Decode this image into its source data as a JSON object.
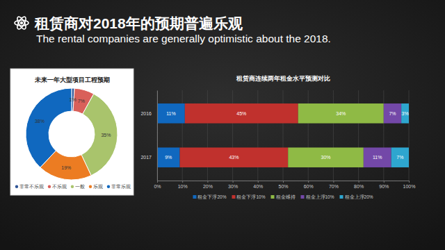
{
  "header": {
    "title": "租赁商对2018年的预期普遍乐观",
    "subtitle": "The rental companies are generally optimistic about the 2018."
  },
  "chart_data": [
    {
      "type": "pie",
      "title": "未来一年大型项目工程预期",
      "categories": [
        "非常不乐观",
        "不乐观",
        "一般",
        "乐观",
        "非常乐观"
      ],
      "values": [
        1,
        7,
        35,
        19,
        38
      ],
      "value_labels": [
        "1%",
        "7%",
        "35%",
        "19%",
        "38%"
      ],
      "colors": [
        "#2f5597",
        "#d9605a",
        "#a9c46c",
        "#ec7c22",
        "#1068bf"
      ],
      "data_labels": true,
      "legend": "bottom"
    },
    {
      "type": "bar",
      "title": "租赁商连续两年租金水平预测对比",
      "orientation": "horizontal",
      "stacked": true,
      "data_labels": true,
      "grid": true,
      "legend": "bottom",
      "categories": [
        "2016",
        "2017"
      ],
      "series": [
        {
          "name": "租金下浮20%",
          "color": "#1068bf",
          "values": [
            11,
            9
          ],
          "value_labels": [
            "11%",
            "9%"
          ]
        },
        {
          "name": "租金下浮10%",
          "color": "#c0312d",
          "values": [
            45,
            43
          ],
          "value_labels": [
            "45%",
            "43%"
          ]
        },
        {
          "name": "租金维持",
          "color": "#8fba45",
          "values": [
            34,
            30
          ],
          "value_labels": [
            "34%",
            "30%"
          ]
        },
        {
          "name": "租金上浮10%",
          "color": "#7348a8",
          "values": [
            7,
            11
          ],
          "value_labels": [
            "7%",
            "11%"
          ]
        },
        {
          "name": "租金上浮20%",
          "color": "#2ea6cf",
          "values": [
            3,
            7
          ],
          "value_labels": [
            "3%",
            "7%"
          ]
        }
      ],
      "xlim": [
        0,
        100
      ],
      "xticks": [
        {
          "value": 0,
          "label": "0%"
        },
        {
          "value": 10,
          "label": "10%"
        },
        {
          "value": 20,
          "label": "20%"
        },
        {
          "value": 30,
          "label": "30%"
        },
        {
          "value": 40,
          "label": "40%"
        },
        {
          "value": 50,
          "label": "50%"
        },
        {
          "value": 60,
          "label": "60%"
        },
        {
          "value": 70,
          "label": "70%"
        },
        {
          "value": 80,
          "label": "80%"
        },
        {
          "value": 90,
          "label": "90%"
        },
        {
          "value": 100,
          "label": "100%"
        }
      ]
    }
  ]
}
